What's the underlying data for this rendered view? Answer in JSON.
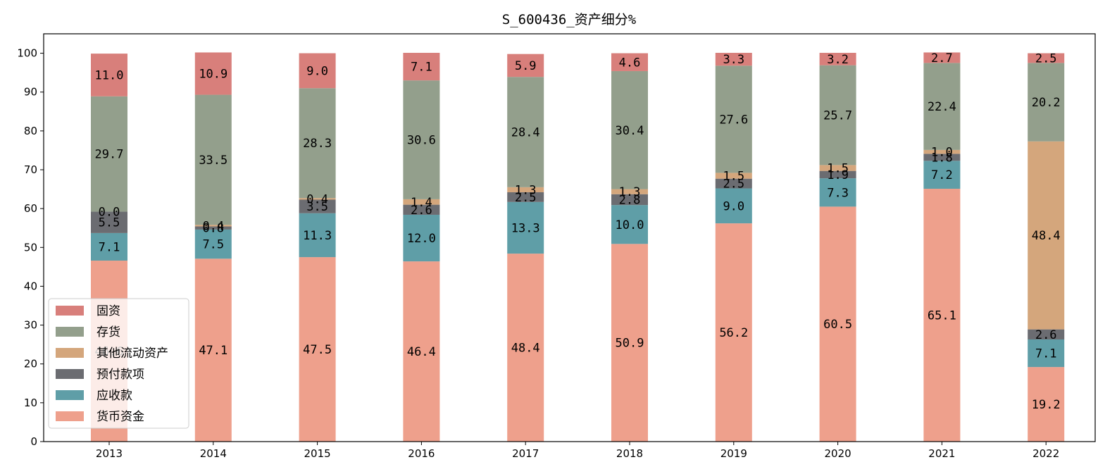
{
  "chart_data": {
    "type": "bar",
    "stacked": true,
    "title": "S_600436_资产细分%",
    "xlabel": "",
    "ylabel": "",
    "ylim": [
      0,
      105
    ],
    "yticks": [
      0,
      10,
      20,
      30,
      40,
      50,
      60,
      70,
      80,
      90,
      100
    ],
    "grid": false,
    "legend_position": "lower-left",
    "categories": [
      "2013",
      "2014",
      "2015",
      "2016",
      "2017",
      "2018",
      "2019",
      "2020",
      "2021",
      "2022"
    ],
    "series": [
      {
        "name": "货币资金",
        "color": "#eea08c",
        "values": [
          46.6,
          47.1,
          47.5,
          46.4,
          48.4,
          50.9,
          56.2,
          60.5,
          65.1,
          19.2
        ],
        "labels": [
          "46.6",
          "47.1",
          "47.5",
          "46.4",
          "48.4",
          "50.9",
          "56.2",
          "60.5",
          "65.1",
          "19.2"
        ]
      },
      {
        "name": "应收款",
        "color": "#5f9ea7",
        "values": [
          7.1,
          7.5,
          11.3,
          12.0,
          13.3,
          10.0,
          9.0,
          7.3,
          7.2,
          7.1
        ],
        "labels": [
          "7.1",
          "7.5",
          "11.3",
          "12.0",
          "13.3",
          "10.0",
          "9.0",
          "7.3",
          "7.2",
          "7.1"
        ]
      },
      {
        "name": "预付款项",
        "color": "#6b6c71",
        "values": [
          5.5,
          0.8,
          3.5,
          2.6,
          2.5,
          2.8,
          2.5,
          1.9,
          1.8,
          2.6
        ],
        "labels": [
          "5.5",
          "0.8",
          "3.5",
          "2.6",
          "2.5",
          "2.8",
          "2.5",
          "1.9",
          "1.8",
          "2.6"
        ]
      },
      {
        "name": "其他流动资产",
        "color": "#d4a67c",
        "values": [
          0.0,
          0.4,
          0.4,
          1.4,
          1.3,
          1.3,
          1.5,
          1.5,
          1.0,
          48.4
        ],
        "labels": [
          "0.0",
          "0.4",
          "0.4",
          "1.4",
          "1.3",
          "1.3",
          "1.5",
          "1.5",
          "1.0",
          "48.4"
        ]
      },
      {
        "name": "存货",
        "color": "#939f8c",
        "values": [
          29.7,
          33.5,
          28.3,
          30.6,
          28.4,
          30.4,
          27.6,
          25.7,
          22.4,
          20.2
        ],
        "labels": [
          "29.7",
          "33.5",
          "28.3",
          "30.6",
          "28.4",
          "30.4",
          "27.6",
          "25.7",
          "22.4",
          "20.2"
        ]
      },
      {
        "name": "固资",
        "color": "#d87f7b",
        "values": [
          11.0,
          10.9,
          9.0,
          7.1,
          5.9,
          4.6,
          3.3,
          3.2,
          2.7,
          2.5
        ],
        "labels": [
          "11.0",
          "10.9",
          "9.0",
          "7.1",
          "5.9",
          "4.6",
          "3.3",
          "3.2",
          "2.7",
          "2.5"
        ]
      }
    ],
    "legend_order": [
      "固资",
      "存货",
      "其他流动资产",
      "预付款项",
      "应收款",
      "货币资金"
    ]
  }
}
